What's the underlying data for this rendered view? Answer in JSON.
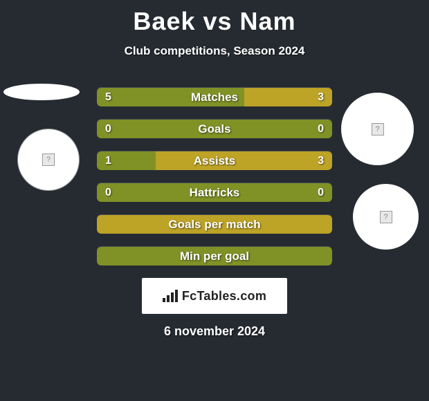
{
  "title": "Baek vs Nam",
  "subtitle": "Club competitions, Season 2024",
  "date": "6 november 2024",
  "footer_brand": "FcTables.com",
  "colors": {
    "background": "#262b32",
    "bar_green": "#809126",
    "bar_olive": "#bda326",
    "white": "#ffffff"
  },
  "stats": [
    {
      "label": "Matches",
      "left_value": "5",
      "right_value": "3",
      "left_pct": 62.5,
      "right_pct": 37.5,
      "left_color": "#809126",
      "right_color": "#bda326"
    },
    {
      "label": "Goals",
      "left_value": "0",
      "right_value": "0",
      "left_pct": 0,
      "right_pct": 0,
      "bg_color": "#809126"
    },
    {
      "label": "Assists",
      "left_value": "1",
      "right_value": "3",
      "left_pct": 25,
      "right_pct": 75,
      "left_color": "#809126",
      "right_color": "#bda326"
    },
    {
      "label": "Hattricks",
      "left_value": "0",
      "right_value": "0",
      "left_pct": 0,
      "right_pct": 0,
      "bg_color": "#809126"
    },
    {
      "label": "Goals per match",
      "left_value": "",
      "right_value": "",
      "left_pct": 0,
      "right_pct": 0,
      "bg_color": "#bda326"
    },
    {
      "label": "Min per goal",
      "left_value": "",
      "right_value": "",
      "left_pct": 0,
      "right_pct": 0,
      "bg_color": "#809126"
    }
  ]
}
